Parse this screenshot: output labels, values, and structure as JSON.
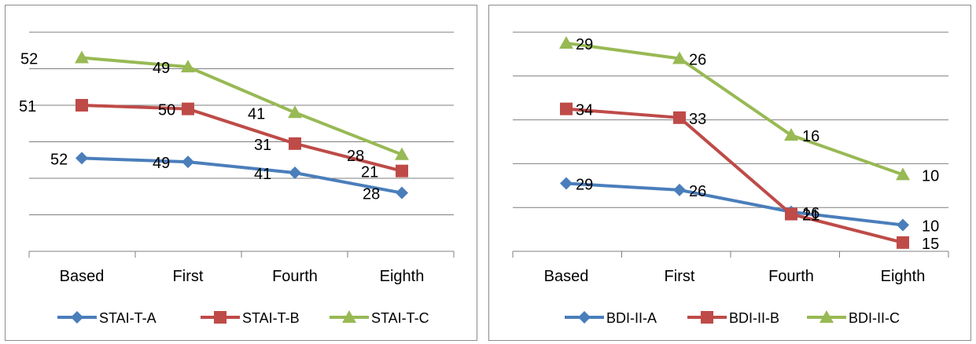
{
  "colors": {
    "series_a": "#4a7ebb",
    "series_b": "#be4b48",
    "series_c": "#98b954",
    "grid": "#7f7f7f",
    "frame": "#8c8c8c"
  },
  "chart_data": [
    {
      "type": "line",
      "categories": [
        "Based",
        "First",
        "Fourth",
        "Eighth"
      ],
      "ylim": [
        0,
        6
      ],
      "grid": true,
      "legend": "bottom",
      "series": [
        {
          "name": "STAI-T-A",
          "marker": "diamond",
          "color": "#4a7ebb",
          "values": [
            2.55,
            2.45,
            2.15,
            1.6
          ],
          "labels": [
            "52",
            "49",
            "41",
            "28"
          ]
        },
        {
          "name": "STAI-T-B",
          "marker": "square",
          "color": "#be4b48",
          "values": [
            4.0,
            3.9,
            2.95,
            2.2
          ],
          "labels": [
            "51",
            "50",
            "31",
            "21"
          ]
        },
        {
          "name": "STAI-T-C",
          "marker": "triangle",
          "color": "#98b954",
          "values": [
            5.3,
            5.05,
            3.8,
            2.65
          ],
          "labels": [
            "52",
            "49",
            "41",
            "28"
          ]
        }
      ]
    },
    {
      "type": "line",
      "categories": [
        "Based",
        "First",
        "Fourth",
        "Eighth"
      ],
      "ylim": [
        0,
        5
      ],
      "grid": true,
      "legend": "bottom",
      "series": [
        {
          "name": "BDI-II-A",
          "marker": "diamond",
          "color": "#4a7ebb",
          "values": [
            1.55,
            1.4,
            0.9,
            0.6
          ],
          "labels": [
            "29",
            "26",
            "16",
            "10"
          ]
        },
        {
          "name": "BDI-II-B",
          "marker": "square",
          "color": "#be4b48",
          "values": [
            3.25,
            3.05,
            0.85,
            0.2
          ],
          "labels": [
            "34",
            "33",
            "21",
            "15"
          ]
        },
        {
          "name": "BDI-II-C",
          "marker": "triangle",
          "color": "#98b954",
          "values": [
            4.75,
            4.4,
            2.65,
            1.75
          ],
          "labels": [
            "29",
            "26",
            "16",
            "10"
          ]
        }
      ]
    }
  ]
}
